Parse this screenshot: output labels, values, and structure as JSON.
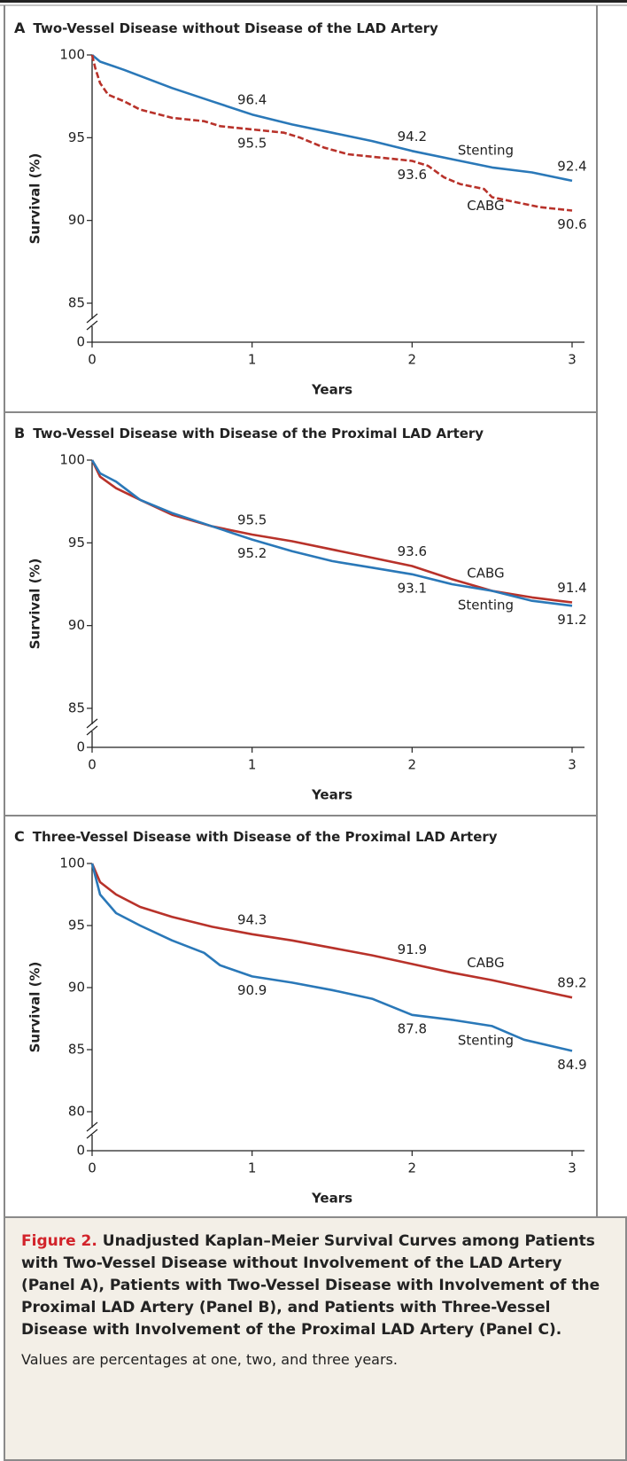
{
  "chart_data": [
    {
      "type": "line",
      "panel": "A",
      "title": "Two-Vessel Disease without Disease of the LAD Artery",
      "x_label": "Years",
      "y_label": "Survival (%)",
      "xlim": [
        0,
        3
      ],
      "xticks": [
        0,
        1,
        2,
        3
      ],
      "ylim": [
        85,
        100
      ],
      "yticks": [
        85,
        90,
        95,
        100
      ],
      "y_break_tick": 0,
      "series": [
        {
          "name": "Stenting",
          "color": "#2a78b8",
          "dashed": false,
          "label_side": "above",
          "x": [
            0,
            0.05,
            0.2,
            0.5,
            0.75,
            1,
            1.25,
            1.5,
            1.75,
            2,
            2.25,
            2.5,
            2.75,
            3
          ],
          "values": [
            100,
            99.6,
            99.1,
            98.0,
            97.2,
            96.4,
            95.8,
            95.3,
            94.8,
            94.2,
            93.7,
            93.2,
            92.9,
            92.4
          ],
          "labeled_points": [
            {
              "x": 1,
              "value": 96.4
            },
            {
              "x": 2,
              "value": 94.2
            },
            {
              "x": 3,
              "value": 92.4
            }
          ]
        },
        {
          "name": "CABG",
          "color": "#b8322a",
          "dashed": true,
          "label_side": "below",
          "x": [
            0,
            0.02,
            0.05,
            0.1,
            0.2,
            0.3,
            0.5,
            0.7,
            0.8,
            1,
            1.2,
            1.3,
            1.45,
            1.6,
            1.8,
            2,
            2.1,
            2.2,
            2.3,
            2.45,
            2.5,
            2.7,
            2.8,
            3
          ],
          "values": [
            100,
            99.2,
            98.3,
            97.6,
            97.2,
            96.7,
            96.2,
            96.0,
            95.7,
            95.5,
            95.3,
            95.0,
            94.4,
            94.0,
            93.8,
            93.6,
            93.3,
            92.6,
            92.2,
            91.9,
            91.4,
            91.0,
            90.8,
            90.6
          ],
          "labeled_points": [
            {
              "x": 1,
              "value": 95.5
            },
            {
              "x": 2,
              "value": 93.6
            },
            {
              "x": 3,
              "value": 90.6
            }
          ]
        }
      ]
    },
    {
      "type": "line",
      "panel": "B",
      "title": "Two-Vessel Disease with Disease of the Proximal LAD Artery",
      "x_label": "Years",
      "y_label": "Survival (%)",
      "xlim": [
        0,
        3
      ],
      "xticks": [
        0,
        1,
        2,
        3
      ],
      "ylim": [
        85,
        100
      ],
      "yticks": [
        85,
        90,
        95,
        100
      ],
      "y_break_tick": 0,
      "series": [
        {
          "name": "CABG",
          "color": "#b8322a",
          "dashed": false,
          "label_side": "above",
          "x": [
            0,
            0.05,
            0.15,
            0.3,
            0.5,
            0.75,
            1,
            1.25,
            1.5,
            1.75,
            2,
            2.25,
            2.5,
            2.75,
            3
          ],
          "values": [
            100,
            99.0,
            98.3,
            97.6,
            96.7,
            96.0,
            95.5,
            95.1,
            94.6,
            94.1,
            93.6,
            92.8,
            92.1,
            91.7,
            91.4
          ],
          "labeled_points": [
            {
              "x": 1,
              "value": 95.5
            },
            {
              "x": 2,
              "value": 93.6
            },
            {
              "x": 3,
              "value": 91.4
            }
          ]
        },
        {
          "name": "Stenting",
          "color": "#2a78b8",
          "dashed": false,
          "label_side": "below",
          "x": [
            0,
            0.05,
            0.15,
            0.3,
            0.5,
            0.75,
            1,
            1.25,
            1.5,
            1.75,
            2,
            2.25,
            2.5,
            2.75,
            3
          ],
          "values": [
            100,
            99.2,
            98.7,
            97.6,
            96.8,
            96.0,
            95.2,
            94.5,
            93.9,
            93.5,
            93.1,
            92.5,
            92.1,
            91.5,
            91.2
          ],
          "labeled_points": [
            {
              "x": 1,
              "value": 95.2
            },
            {
              "x": 2,
              "value": 93.1
            },
            {
              "x": 3,
              "value": 91.2
            }
          ]
        }
      ]
    },
    {
      "type": "line",
      "panel": "C",
      "title": "Three-Vessel Disease with Disease of the Proximal LAD Artery",
      "x_label": "Years",
      "y_label": "Survival (%)",
      "xlim": [
        0,
        3
      ],
      "xticks": [
        0,
        1,
        2,
        3
      ],
      "ylim": [
        80,
        100
      ],
      "yticks": [
        80,
        85,
        90,
        95,
        100
      ],
      "y_break_tick": 0,
      "series": [
        {
          "name": "CABG",
          "color": "#b8322a",
          "dashed": false,
          "label_side": "above",
          "x": [
            0,
            0.05,
            0.15,
            0.3,
            0.5,
            0.75,
            1,
            1.25,
            1.5,
            1.75,
            2,
            2.25,
            2.5,
            2.75,
            3
          ],
          "values": [
            100,
            98.5,
            97.5,
            96.5,
            95.7,
            94.9,
            94.3,
            93.8,
            93.2,
            92.6,
            91.9,
            91.2,
            90.6,
            89.9,
            89.2
          ],
          "labeled_points": [
            {
              "x": 1,
              "value": 94.3
            },
            {
              "x": 2,
              "value": 91.9
            },
            {
              "x": 3,
              "value": 89.2
            }
          ]
        },
        {
          "name": "Stenting",
          "color": "#2a78b8",
          "dashed": false,
          "label_side": "below",
          "x": [
            0,
            0.05,
            0.15,
            0.3,
            0.5,
            0.7,
            0.8,
            1,
            1.25,
            1.5,
            1.75,
            2,
            2.25,
            2.5,
            2.7,
            3
          ],
          "values": [
            100,
            97.5,
            96.0,
            95.0,
            93.8,
            92.8,
            91.8,
            90.9,
            90.4,
            89.8,
            89.1,
            87.8,
            87.4,
            86.9,
            85.8,
            84.9
          ],
          "labeled_points": [
            {
              "x": 1,
              "value": 90.9
            },
            {
              "x": 2,
              "value": 87.8
            },
            {
              "x": 3,
              "value": 84.9
            }
          ]
        }
      ]
    }
  ],
  "caption": {
    "label": "Figure 2.",
    "title": "Unadjusted Kaplan–Meier Survival Curves among Patients with Two-Vessel Disease without Involvement of the LAD Artery (Panel A), Patients with Two-Vessel Disease with Involvement of the Proximal LAD Artery (Panel B), and Patients with Three-Vessel Disease with Involvement of the Proximal LAD Artery (Panel C).",
    "note": "Values are percentages at one, two, and three years."
  }
}
